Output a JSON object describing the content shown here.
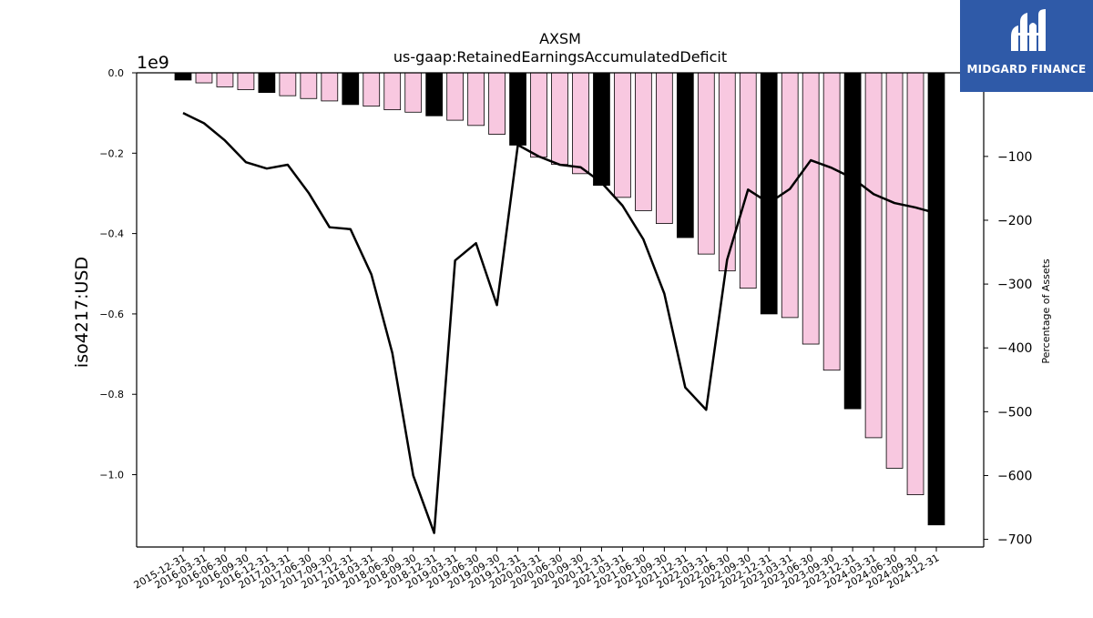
{
  "chart_data": {
    "type": "bar",
    "title": "AXSM",
    "subtitle": "us-gaap:RetainedEarningsAccumulatedDeficit",
    "ylabel": "iso4217:USD",
    "y_offset_label": "1e9",
    "y2label": "Percentage of Assets",
    "ylim": [
      -1.18,
      0.0
    ],
    "y2lim": [
      -712,
      31
    ],
    "yticks": [
      0.0,
      -0.2,
      -0.4,
      -0.6,
      -0.8,
      -1.0
    ],
    "ytick_labels": [
      "0.0",
      "−0.2",
      "−0.4",
      "−0.6",
      "−0.8",
      "−1.0"
    ],
    "y2ticks": [
      -100,
      -200,
      -300,
      -400,
      -500,
      -600,
      -700
    ],
    "y2tick_labels": [
      "−100",
      "−200",
      "−300",
      "−400",
      "−500",
      "−600",
      "−700"
    ],
    "grid": false,
    "categories": [
      "2015-12-31",
      "2016-03-31",
      "2016-06-30",
      "2016-09-30",
      "2016-12-31",
      "2017-03-31",
      "2017-06-30",
      "2017-09-30",
      "2017-12-31",
      "2018-03-31",
      "2018-06-30",
      "2018-09-30",
      "2018-12-31",
      "2019-03-31",
      "2019-06-30",
      "2019-09-30",
      "2019-12-31",
      "2020-03-31",
      "2020-06-30",
      "2020-09-30",
      "2020-12-31",
      "2021-03-31",
      "2021-06-30",
      "2021-09-30",
      "2021-12-31",
      "2022-03-31",
      "2022-06-30",
      "2022-09-30",
      "2022-12-31",
      "2023-03-31",
      "2023-06-30",
      "2023-09-30",
      "2023-12-31",
      "2024-03-31",
      "2024-06-30",
      "2024-09-30",
      "2024-12-31"
    ],
    "series": [
      {
        "type": "bar",
        "axis": "left",
        "values": [
          -0.018,
          -0.025,
          -0.035,
          -0.042,
          -0.049,
          -0.057,
          -0.064,
          -0.07,
          -0.079,
          -0.083,
          -0.092,
          -0.098,
          -0.107,
          -0.118,
          -0.131,
          -0.153,
          -0.18,
          -0.21,
          -0.228,
          -0.251,
          -0.28,
          -0.31,
          -0.343,
          -0.375,
          -0.41,
          -0.451,
          -0.493,
          -0.536,
          -0.6,
          -0.609,
          -0.675,
          -0.74,
          -0.836,
          -0.908,
          -0.984,
          -1.05,
          -1.125
        ],
        "year_end_color": "#000000",
        "quarter_color": "#f8c8e0"
      },
      {
        "type": "line",
        "axis": "right",
        "color": "#000000",
        "values": [
          -32,
          -48,
          -75,
          -109,
          -119,
          -113,
          -157,
          -211,
          -214,
          -285,
          -408,
          -600,
          -690,
          -263,
          -236,
          -333,
          -82,
          -100,
          -113,
          -117,
          -141,
          -177,
          -230,
          -315,
          -462,
          -497,
          -262,
          -152,
          -173,
          -151,
          -106,
          -118,
          -134,
          -159,
          -173,
          -180,
          -189
        ]
      }
    ]
  },
  "logo": {
    "text": "MIDGARD FINANCE",
    "color": "#2f5aa8"
  }
}
